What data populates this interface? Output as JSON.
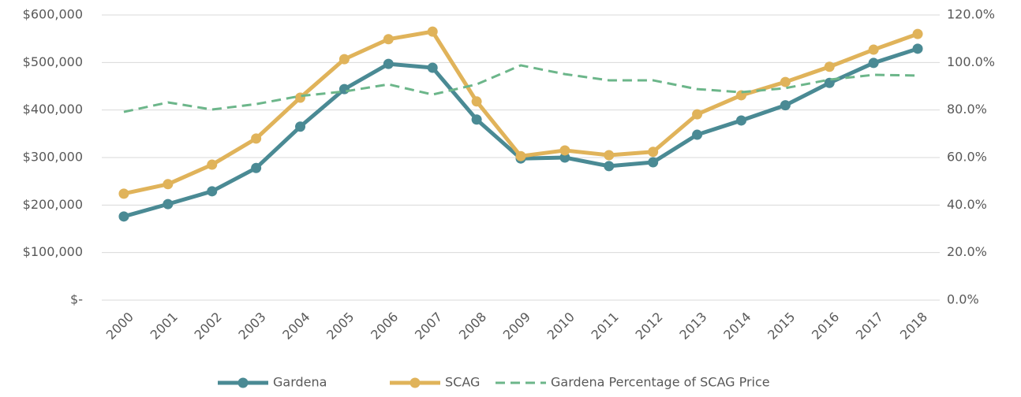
{
  "chart_data": {
    "type": "line",
    "categories": [
      "2000",
      "2001",
      "2002",
      "2003",
      "2004",
      "2005",
      "2006",
      "2007",
      "2008",
      "2009",
      "2010",
      "2011",
      "2012",
      "2013",
      "2014",
      "2015",
      "2016",
      "2017",
      "2018"
    ],
    "series": [
      {
        "name": "Gardena",
        "color": "#4a8a94",
        "marker": true,
        "values": [
          176000,
          202000,
          229000,
          278000,
          365000,
          444000,
          497000,
          489000,
          380000,
          298000,
          300000,
          282000,
          290000,
          348000,
          378000,
          410000,
          457000,
          499000,
          529000
        ]
      },
      {
        "name": "SCAG",
        "color": "#e0b35a",
        "marker": true,
        "values": [
          224000,
          244000,
          285000,
          340000,
          426000,
          507000,
          549000,
          565000,
          418000,
          303000,
          315000,
          305000,
          312000,
          391000,
          431000,
          459000,
          491000,
          527000,
          560000
        ]
      },
      {
        "name": "Gardena Percentage of SCAG Price",
        "color": "#6cb68a",
        "dashed": true,
        "axis": "y2",
        "values": [
          79.2,
          83.2,
          80.2,
          82.5,
          85.9,
          87.8,
          90.8,
          86.5,
          90.8,
          98.8,
          95.1,
          92.5,
          92.5,
          88.8,
          87.5,
          89.2,
          92.8,
          94.8,
          94.5
        ]
      }
    ],
    "ylim": [
      0,
      600000
    ],
    "yticks": [
      {
        "value": 0,
        "label": "$-"
      },
      {
        "value": 100000,
        "label": "$100,000"
      },
      {
        "value": 200000,
        "label": "$200,000"
      },
      {
        "value": 300000,
        "label": "$300,000"
      },
      {
        "value": 400000,
        "label": "$400,000"
      },
      {
        "value": 500000,
        "label": "$500,000"
      },
      {
        "value": 600000,
        "label": "$600,000"
      }
    ],
    "y2lim": [
      0,
      120
    ],
    "y2ticks": [
      {
        "value": 0,
        "label": "0.0%"
      },
      {
        "value": 20,
        "label": "20.0%"
      },
      {
        "value": 40,
        "label": "40.0%"
      },
      {
        "value": 60,
        "label": "60.0%"
      },
      {
        "value": 80,
        "label": "80.0%"
      },
      {
        "value": 100,
        "label": "100.0%"
      },
      {
        "value": 120,
        "label": "120.0%"
      }
    ],
    "grid": true,
    "legend": "bottom"
  }
}
